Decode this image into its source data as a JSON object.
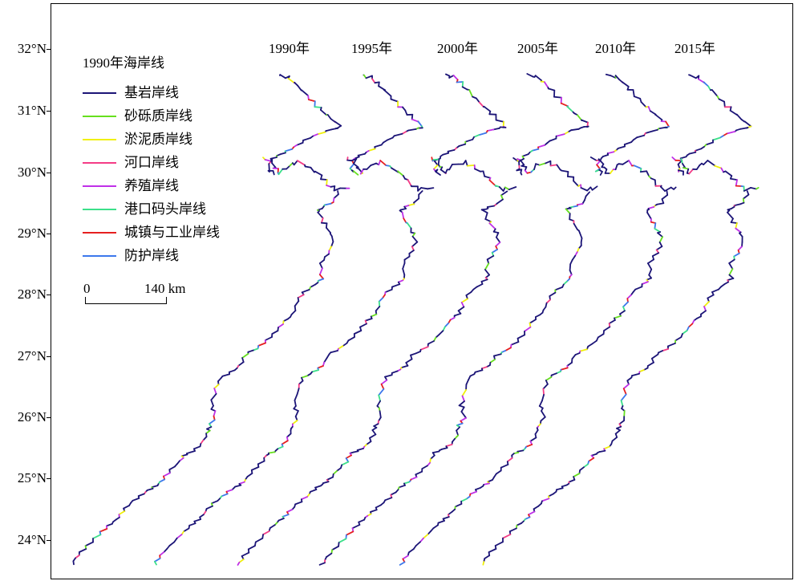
{
  "latitude_ticks": [
    "32°N",
    "31°N",
    "30°N",
    "29°N",
    "28°N",
    "27°N",
    "26°N",
    "25°N",
    "24°N"
  ],
  "years": [
    "1990年",
    "1995年",
    "2000年",
    "2005年",
    "2010年",
    "2015年"
  ],
  "legend": {
    "title": "1990年海岸线",
    "items": [
      {
        "label": "基岩岸线",
        "color": "#1c1577"
      },
      {
        "label": "砂砾质岸线",
        "color": "#66e01e"
      },
      {
        "label": "淤泥质岸线",
        "color": "#f0f00a"
      },
      {
        "label": "河口岸线",
        "color": "#f43c86"
      },
      {
        "label": "养殖岸线",
        "color": "#c030e8"
      },
      {
        "label": "港口码头岸线",
        "color": "#3ce08a"
      },
      {
        "label": "城镇与工业岸线",
        "color": "#e62020"
      },
      {
        "label": "防护岸线",
        "color": "#3c78ec"
      }
    ]
  },
  "scale_bar": {
    "zero": "0",
    "distance": "140 km"
  }
}
